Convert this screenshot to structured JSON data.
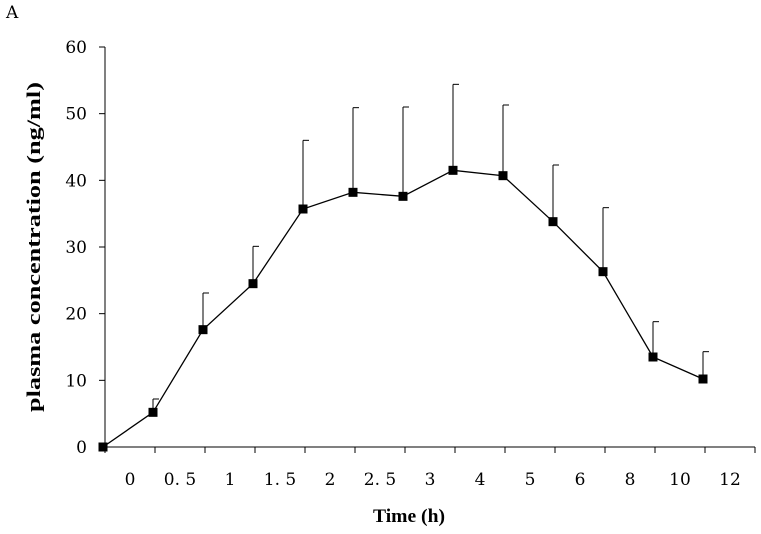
{
  "panel_label": "A",
  "chart_data": {
    "type": "line",
    "title": "",
    "xlabel": "Time (h)",
    "ylabel": "plasma concentration (ng/ml)",
    "categories": [
      "0",
      "0. 5",
      "1",
      "1. 5",
      "2",
      "2. 5",
      "3",
      "4",
      "5",
      "6",
      "8",
      "10",
      "12"
    ],
    "series": [
      {
        "name": "plasma concentration",
        "values": [
          0,
          5.2,
          17.6,
          24.5,
          35.7,
          38.2,
          37.6,
          41.5,
          40.7,
          33.8,
          26.3,
          13.5,
          10.2
        ],
        "error_upper": [
          0,
          2.0,
          5.5,
          5.6,
          10.3,
          12.7,
          13.4,
          12.9,
          10.6,
          8.5,
          9.6,
          5.3,
          4.1
        ]
      }
    ],
    "ylim": [
      0,
      60
    ],
    "yticks": [
      0,
      10,
      20,
      30,
      40,
      50,
      60
    ],
    "grid": false,
    "marker": "square"
  }
}
